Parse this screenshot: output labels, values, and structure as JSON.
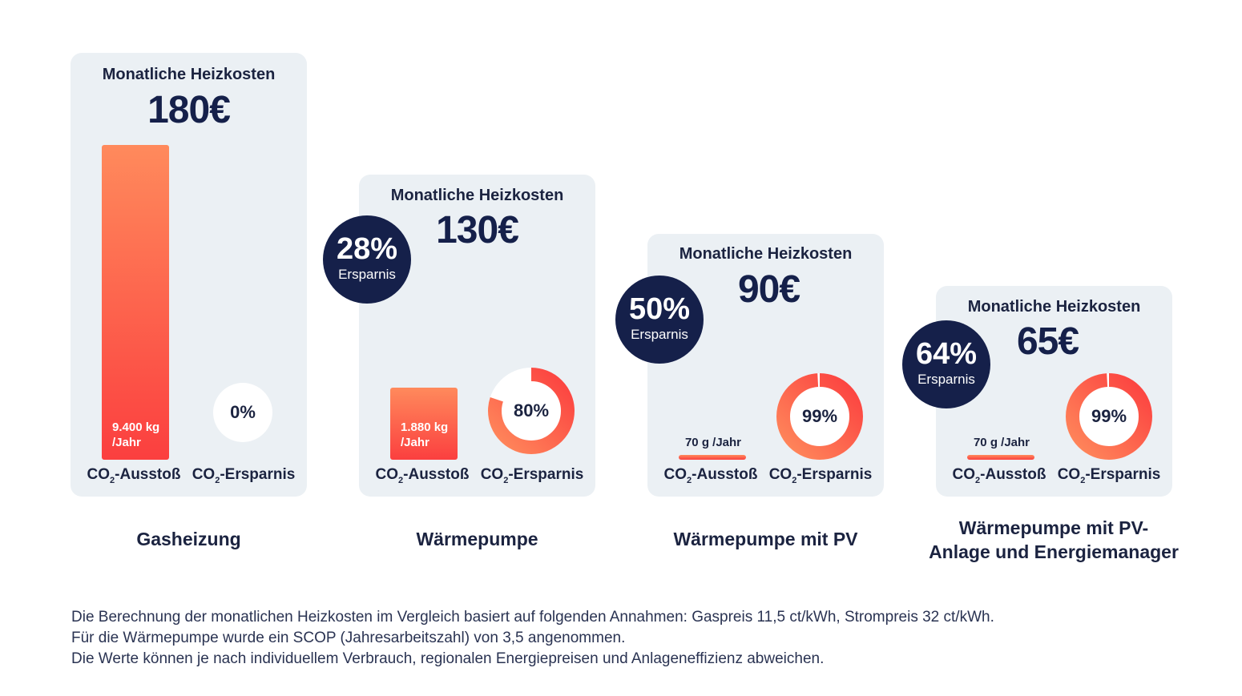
{
  "chart_data": {
    "type": "bar",
    "categories": [
      "Gasheizung",
      "Wärmepumpe",
      "Wärmepumpe mit PV",
      "Wärmepumpe mit PV-\nAnlage und Energiemanager"
    ],
    "series": [
      {
        "values": [
          180,
          130,
          90,
          65
        ]
      },
      {
        "name": "CO₂-Ausstoß",
        "values": [
          9400,
          1880,
          70,
          70
        ]
      },
      {
        "name": "CO₂-Ersparnis",
        "values": [
          0,
          80,
          99,
          99
        ]
      }
    ],
    "cards": [
      {
        "title": "Monatliche Heizkosten",
        "cost": "180€",
        "saving": null,
        "saving_label": null,
        "co2_value": "9.400 kg\n/Jahr",
        "co2_kg": 9400,
        "co2_saving_pct": 0,
        "co2_saving_text": "0%",
        "caption": "Gasheizung"
      },
      {
        "title": "Monatliche Heizkosten",
        "cost": "130€",
        "saving": "28%",
        "saving_label": "Ersparnis",
        "co2_value": "1.880 kg\n/Jahr",
        "co2_kg": 1880,
        "co2_saving_pct": 80,
        "co2_saving_text": "80%",
        "caption": "Wärmepumpe"
      },
      {
        "title": "Monatliche Heizkosten",
        "cost": "90€",
        "saving": "50%",
        "saving_label": "Ersparnis",
        "co2_value": "70 g /Jahr",
        "co2_kg": 0.07,
        "co2_saving_pct": 99,
        "co2_saving_text": "99%",
        "caption": "Wärmepumpe mit PV"
      },
      {
        "title": "Monatliche Heizkosten",
        "cost": "65€",
        "saving": "64%",
        "saving_label": "Ersparnis",
        "co2_value": "70 g /Jahr",
        "co2_kg": 0.07,
        "co2_saving_pct": 99,
        "co2_saving_text": "99%",
        "caption": "Wärmepumpe mit PV-\nAnlage und Energiemanager"
      }
    ],
    "axis_labels": {
      "co2_out": "CO₂-Ausstoß",
      "co2_saving": "CO₂-Ersparnis"
    },
    "colors": {
      "card_bg": "#ebf0f4",
      "badge": "#15204a",
      "bar_top": "#ff8a5c",
      "bar_bottom": "#fb3f3f",
      "donut_track": "#ffffff"
    }
  },
  "footnote": {
    "line1": "Die Berechnung der monatlichen Heizkosten im Vergleich basiert auf folgenden Annahmen: Gaspreis 11,5 ct/kWh, Strompreis 32 ct/kWh.",
    "line2": "Für die Wärmepumpe wurde ein SCOP (Jahresarbeitszahl) von 3,5 angenommen.",
    "line3": "Die Werte können je nach individuellem Verbrauch, regionalen Energiepreisen und Anlageneffizienz abweichen."
  }
}
